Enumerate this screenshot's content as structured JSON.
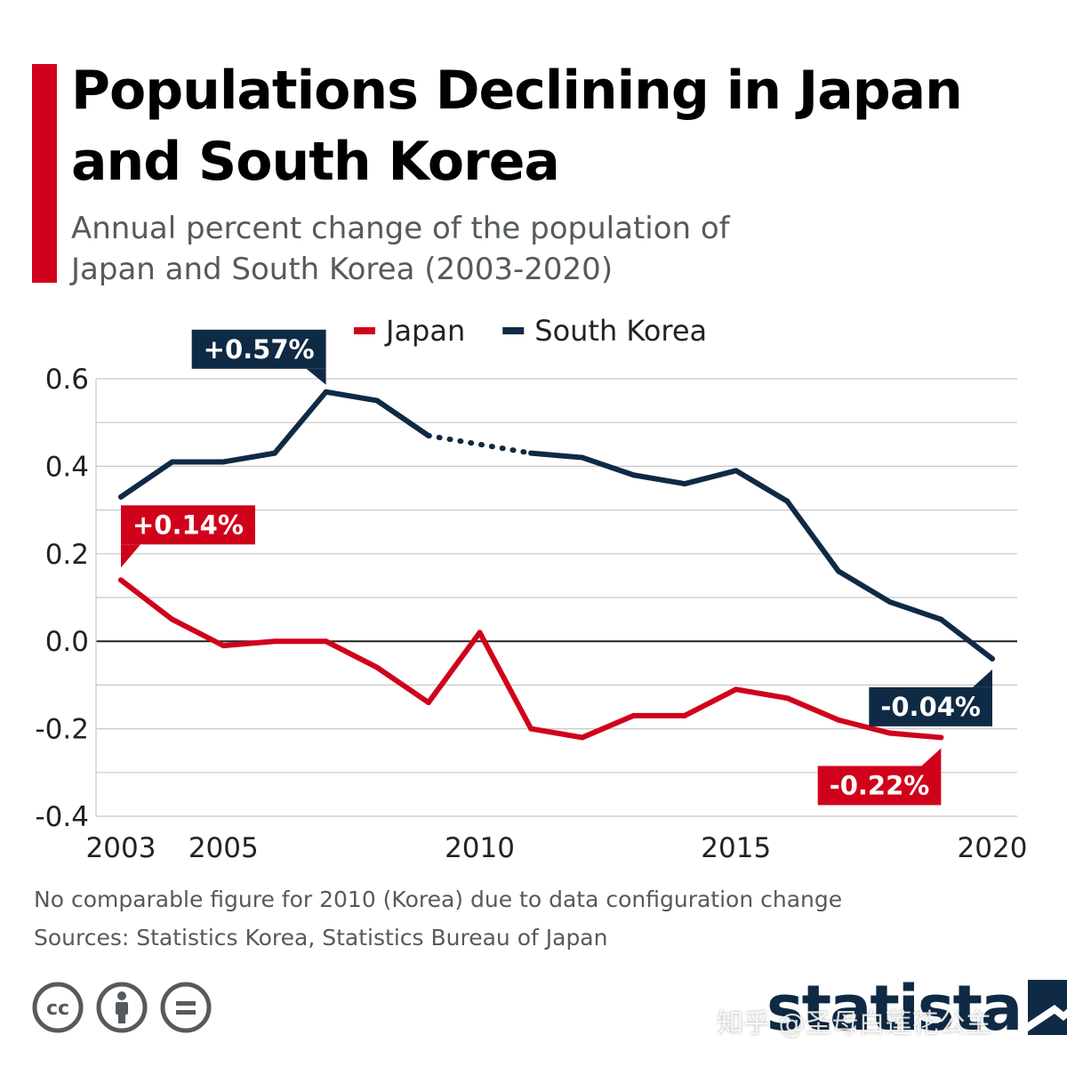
{
  "page": {
    "title": "Populations Declining in Japan and South Korea",
    "subtitle": "Annual percent change of the population of Japan and South Korea (2003-2020)"
  },
  "chart_data": {
    "type": "line",
    "title": "Populations Declining in Japan and South Korea",
    "subtitle": "Annual percent change of the population of Japan and South Korea (2003-2020)",
    "xlabel": "",
    "ylabel": "",
    "xlim": [
      2003,
      2020
    ],
    "ylim": [
      -0.4,
      0.6
    ],
    "x_ticks": [
      "2003",
      "2005",
      "2010",
      "2015",
      "2020"
    ],
    "y_ticks": [
      "0.6",
      "0.4",
      "0.2",
      "0.0",
      "-0.2",
      "-0.4"
    ],
    "grid": true,
    "legend_position": "top",
    "series": [
      {
        "name": "Japan",
        "color": "#d0021b",
        "points": [
          {
            "x": 2003,
            "y": 0.14
          },
          {
            "x": 2004,
            "y": 0.05
          },
          {
            "x": 2005,
            "y": -0.01
          },
          {
            "x": 2006,
            "y": 0.0
          },
          {
            "x": 2007,
            "y": 0.0
          },
          {
            "x": 2008,
            "y": -0.06
          },
          {
            "x": 2009,
            "y": -0.14
          },
          {
            "x": 2010,
            "y": 0.02
          },
          {
            "x": 2011,
            "y": -0.2
          },
          {
            "x": 2012,
            "y": -0.22
          },
          {
            "x": 2013,
            "y": -0.17
          },
          {
            "x": 2014,
            "y": -0.17
          },
          {
            "x": 2015,
            "y": -0.11
          },
          {
            "x": 2016,
            "y": -0.13
          },
          {
            "x": 2017,
            "y": -0.18
          },
          {
            "x": 2018,
            "y": -0.21
          },
          {
            "x": 2019,
            "y": -0.22
          }
        ]
      },
      {
        "name": "South Korea",
        "color": "#0f2a44",
        "gap": [
          2009,
          2011
        ],
        "points": [
          {
            "x": 2003,
            "y": 0.33
          },
          {
            "x": 2004,
            "y": 0.41
          },
          {
            "x": 2005,
            "y": 0.41
          },
          {
            "x": 2006,
            "y": 0.43
          },
          {
            "x": 2007,
            "y": 0.57
          },
          {
            "x": 2008,
            "y": 0.55
          },
          {
            "x": 2009,
            "y": 0.47
          },
          {
            "x": 2011,
            "y": 0.43
          },
          {
            "x": 2012,
            "y": 0.42
          },
          {
            "x": 2013,
            "y": 0.38
          },
          {
            "x": 2014,
            "y": 0.36
          },
          {
            "x": 2015,
            "y": 0.39
          },
          {
            "x": 2016,
            "y": 0.32
          },
          {
            "x": 2017,
            "y": 0.16
          },
          {
            "x": 2018,
            "y": 0.09
          },
          {
            "x": 2019,
            "y": 0.05
          },
          {
            "x": 2020,
            "y": -0.04
          }
        ]
      }
    ],
    "annotations": [
      {
        "series": "Japan",
        "x": 2003,
        "y": 0.14,
        "text": "+0.14%",
        "placement": "above-right"
      },
      {
        "series": "Japan",
        "x": 2019,
        "y": -0.22,
        "text": "-0.22%",
        "placement": "below-left"
      },
      {
        "series": "South Korea",
        "x": 2007,
        "y": 0.57,
        "text": "+0.57%",
        "placement": "above-left"
      },
      {
        "series": "South Korea",
        "x": 2020,
        "y": -0.04,
        "text": "-0.04%",
        "placement": "below-left"
      }
    ]
  },
  "footer": {
    "note": "No comparable figure for 2010 (Korea) due to data configuration change",
    "sources": "Sources: Statistics Korea, Statistics Bureau of Japan",
    "brand": "statista",
    "watermark": "知乎 @圣母白莲花公主",
    "icons": [
      "cc-icon",
      "attribution-icon",
      "no-derivatives-icon"
    ]
  }
}
